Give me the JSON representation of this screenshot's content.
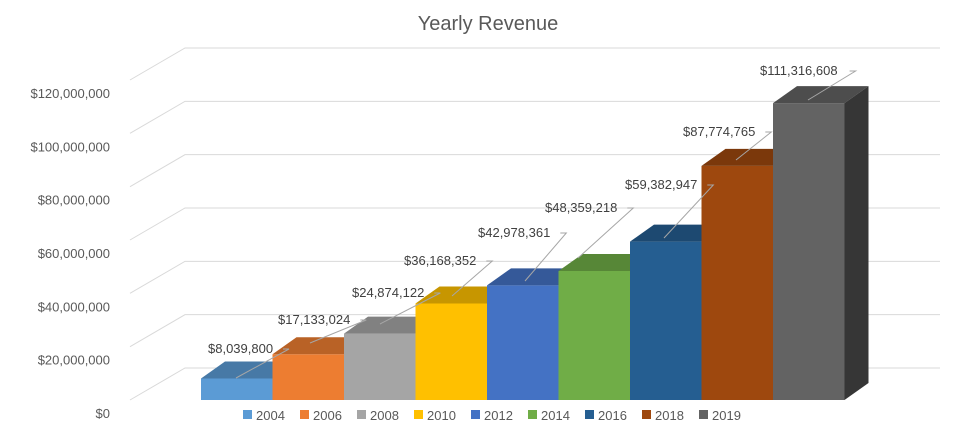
{
  "chart_data": {
    "type": "bar",
    "style": "3d-column",
    "title": "Yearly Revenue",
    "xlabel": "",
    "ylabel": "",
    "ylim": [
      0,
      120000000
    ],
    "yticks": [
      0,
      20000000,
      40000000,
      60000000,
      80000000,
      100000000,
      120000000
    ],
    "ytick_labels": [
      "$0",
      "$20,000,000",
      "$40,000,000",
      "$60,000,000",
      "$80,000,000",
      "$100,000,000",
      "$120,000,000"
    ],
    "grid": true,
    "legend": "bottom",
    "categories": [
      "2004",
      "2006",
      "2008",
      "2010",
      "2012",
      "2014",
      "2016",
      "2018",
      "2019"
    ],
    "values": [
      8039800,
      17133024,
      24874122,
      36168352,
      42978361,
      48359218,
      59382947,
      87774765,
      111316608
    ],
    "data_labels": [
      "$8,039,800",
      "$17,133,024",
      "$24,874,122",
      "$36,168,352",
      "$42,978,361",
      "$48,359,218",
      "$59,382,947",
      "$87,774,765",
      "$111,316,608"
    ],
    "colors": [
      "#5b9bd5",
      "#ed7d31",
      "#a5a5a5",
      "#ffc000",
      "#4472c4",
      "#70ad47",
      "#255e91",
      "#9e480e",
      "#636363"
    ]
  }
}
